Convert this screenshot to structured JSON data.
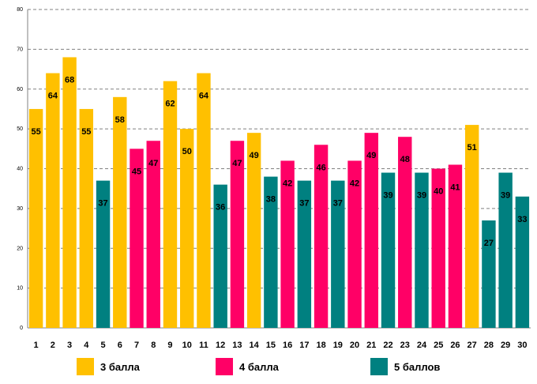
{
  "chart_data": {
    "type": "bar",
    "categories": [
      "1",
      "2",
      "3",
      "4",
      "5",
      "6",
      "7",
      "8",
      "9",
      "10",
      "11",
      "12",
      "13",
      "14",
      "15",
      "16",
      "17",
      "18",
      "19",
      "20",
      "21",
      "22",
      "23",
      "24",
      "25",
      "26",
      "27",
      "28",
      "29",
      "30"
    ],
    "values": [
      55,
      64,
      68,
      55,
      37,
      58,
      45,
      47,
      62,
      50,
      64,
      36,
      47,
      49,
      38,
      42,
      37,
      46,
      37,
      42,
      49,
      39,
      48,
      39,
      40,
      41,
      51,
      27,
      39,
      33
    ],
    "groups": [
      "3",
      "3",
      "3",
      "3",
      "5",
      "3",
      "4",
      "4",
      "3",
      "3",
      "3",
      "5",
      "4",
      "3",
      "5",
      "4",
      "5",
      "4",
      "5",
      "4",
      "4",
      "5",
      "4",
      "5",
      "4",
      "4",
      "3",
      "5",
      "5",
      "5"
    ],
    "ylim": [
      0,
      80
    ],
    "yticks": [
      "0",
      "10",
      "20",
      "30",
      "40",
      "50",
      "60",
      "70",
      "80"
    ],
    "grid": true,
    "legend": [
      {
        "key": "3",
        "label": "3 балла",
        "color": "#FFC000"
      },
      {
        "key": "4",
        "label": "4 балла",
        "color": "#FF0066"
      },
      {
        "key": "5",
        "label": "5 баллов",
        "color": "#008080"
      }
    ]
  }
}
